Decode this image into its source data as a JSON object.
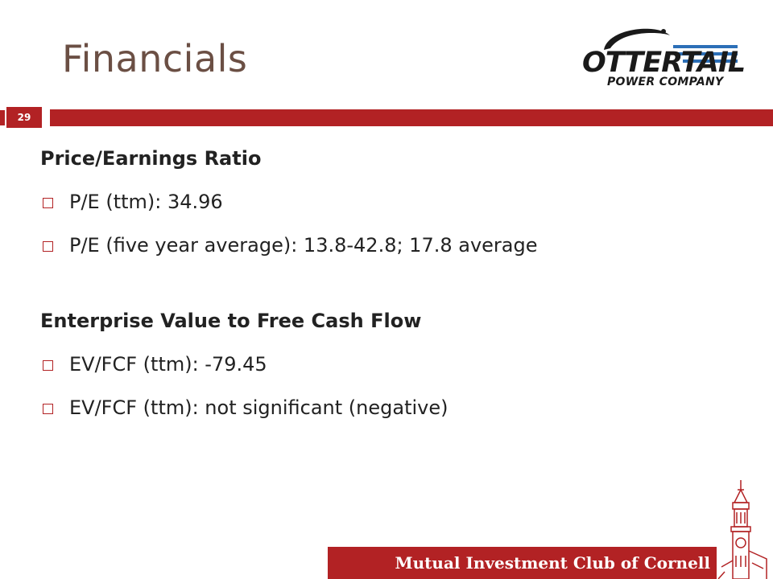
{
  "slide": {
    "title": "Financials",
    "page_number": "29",
    "logo": {
      "word": "OTTERTAIL",
      "sub": "POWER COMPANY"
    },
    "sections": [
      {
        "heading": "Price/Earnings Ratio",
        "bullets": [
          "P/E (ttm): 34.96",
          "P/E (five year average): 13.8-42.8; 17.8 average"
        ]
      },
      {
        "heading": "Enterprise Value to Free Cash Flow",
        "bullets": [
          "EV/FCF (ttm): -79.45",
          "EV/FCF (ttm): not significant (negative)"
        ]
      }
    ],
    "footer": "Mutual Investment Club of Cornell",
    "colors": {
      "accent": "#b22224",
      "title": "#6b4f44"
    }
  }
}
